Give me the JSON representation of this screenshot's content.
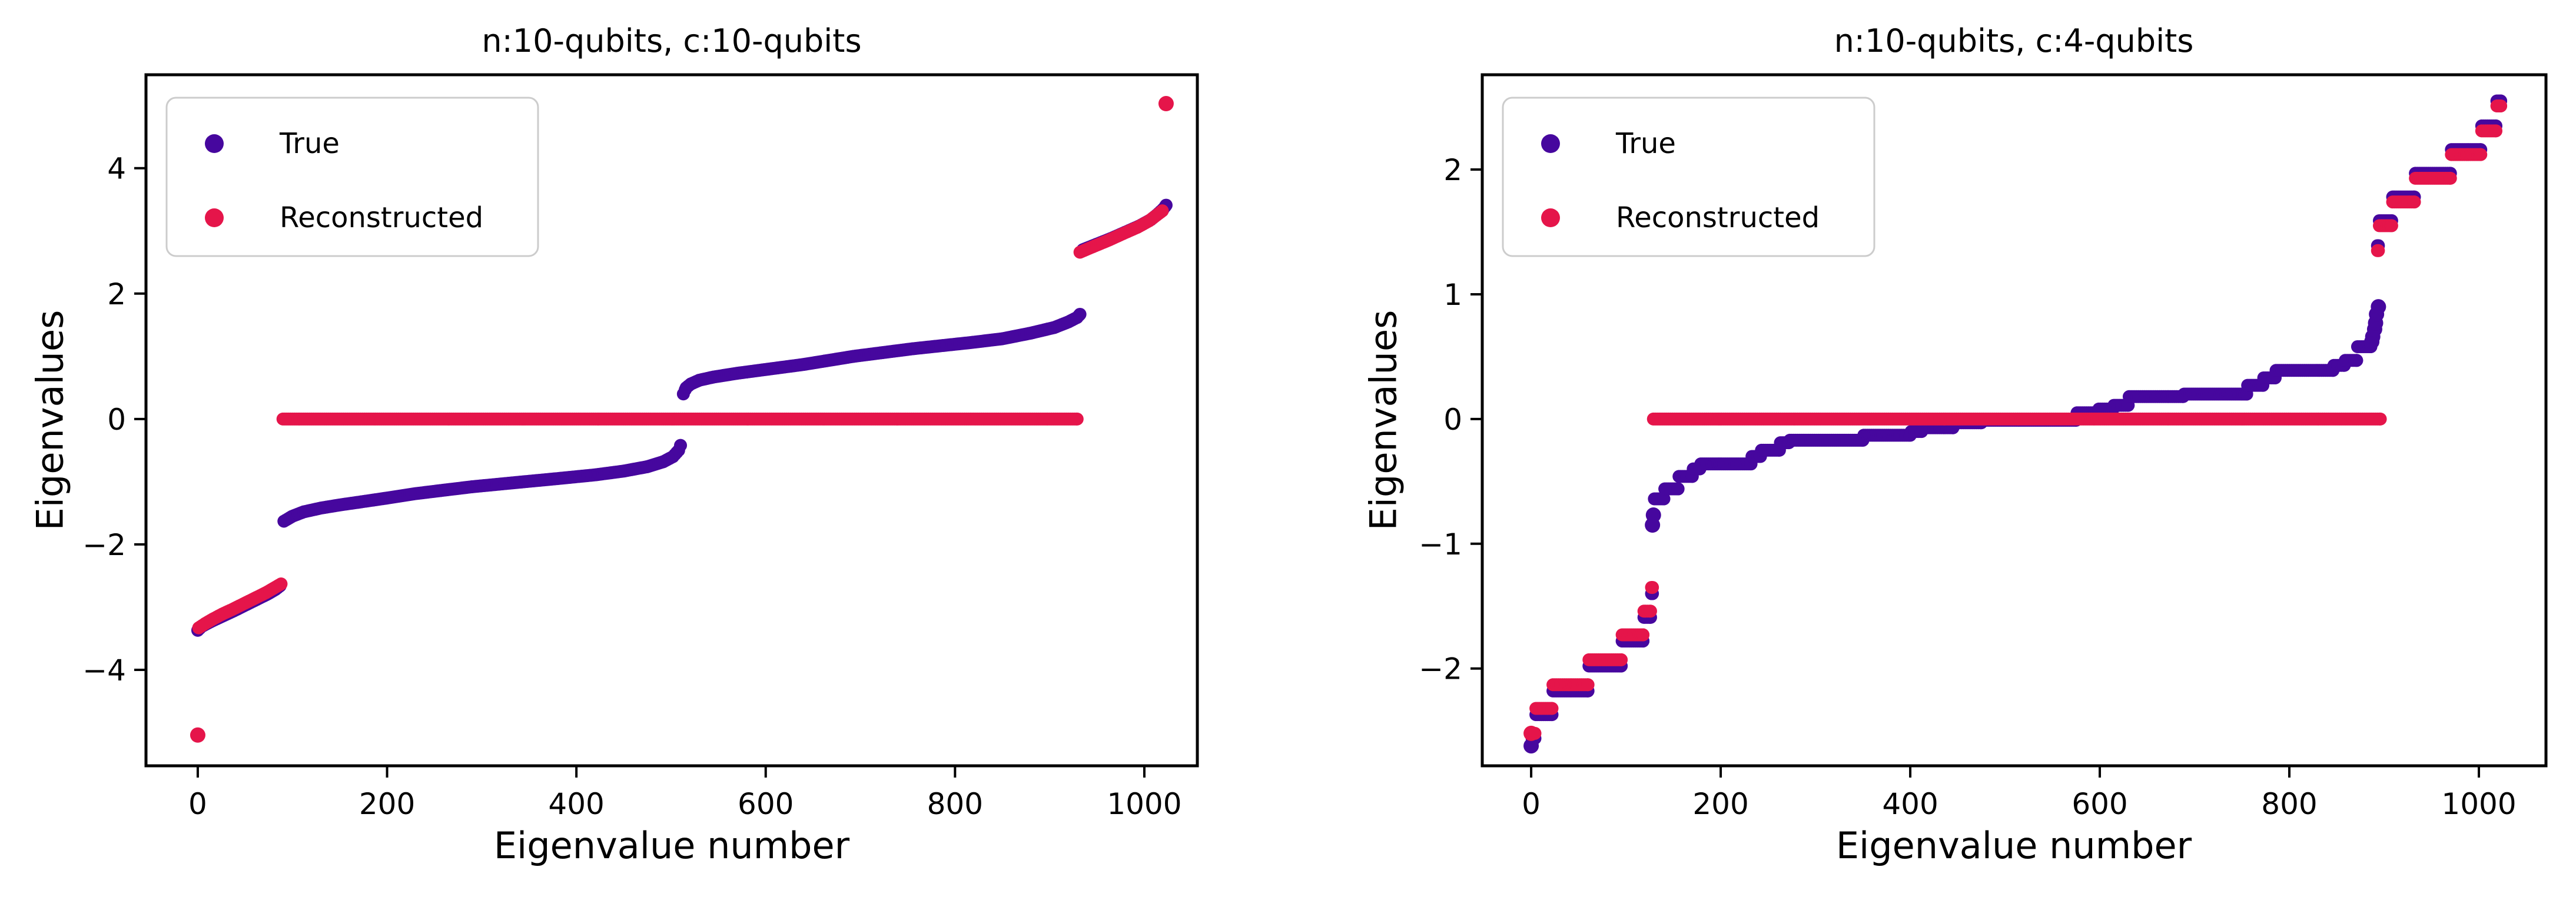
{
  "figure": {
    "background": "#ffffff",
    "spine_color": "#000000",
    "legend_border_color": "#cccccc"
  },
  "chart_data": [
    {
      "type": "scatter",
      "title": "n:10-qubits, c:10-qubits",
      "xlabel": "Eigenvalue number",
      "ylabel": "Eigenvalues",
      "xticks": [
        0,
        200,
        400,
        600,
        800,
        1000
      ],
      "yticks": [
        -4,
        -2,
        0,
        2,
        4
      ],
      "xlim": [
        -54.7,
        1056.0
      ],
      "ylim": [
        -5.53,
        5.49
      ],
      "grid": false,
      "legend_position": "upper left",
      "series": [
        {
          "name": "True",
          "color": "#46079e",
          "segments": [
            {
              "type": "curve",
              "points": [
                [
                  0,
                  -3.37
                ],
                [
                  4,
                  -3.31
                ],
                [
                  10,
                  -3.26
                ],
                [
                  18,
                  -3.2
                ],
                [
                  28,
                  -3.13
                ],
                [
                  38,
                  -3.06
                ],
                [
                  50,
                  -2.97
                ],
                [
                  62,
                  -2.88
                ],
                [
                  74,
                  -2.79
                ],
                [
                  82,
                  -2.72
                ],
                [
                  87,
                  -2.66
                ]
              ]
            },
            {
              "type": "curve",
              "points": [
                [
                  91,
                  -1.63
                ],
                [
                  100,
                  -1.55
                ],
                [
                  112,
                  -1.48
                ],
                [
                  130,
                  -1.42
                ],
                [
                  150,
                  -1.37
                ],
                [
                  173,
                  -1.32
                ],
                [
                  200,
                  -1.26
                ],
                [
                  230,
                  -1.19
                ],
                [
                  257,
                  -1.14
                ],
                [
                  290,
                  -1.08
                ],
                [
                  338,
                  -1.01
                ],
                [
                  380,
                  -0.95
                ],
                [
                  420,
                  -0.89
                ],
                [
                  450,
                  -0.83
                ],
                [
                  475,
                  -0.76
                ],
                [
                  492,
                  -0.68
                ],
                [
                  502,
                  -0.6
                ],
                [
                  508,
                  -0.5
                ],
                [
                  510,
                  -0.42
                ]
              ]
            },
            {
              "type": "curve",
              "points": [
                [
                  513,
                  0.4
                ],
                [
                  516,
                  0.5
                ],
                [
                  521,
                  0.56
                ],
                [
                  530,
                  0.62
                ],
                [
                  545,
                  0.67
                ],
                [
                  570,
                  0.73
                ],
                [
                  600,
                  0.79
                ],
                [
                  640,
                  0.87
                ],
                [
                  693,
                  1.0
                ],
                [
                  755,
                  1.12
                ],
                [
                  817,
                  1.22
                ],
                [
                  850,
                  1.28
                ],
                [
                  880,
                  1.37
                ],
                [
                  905,
                  1.46
                ],
                [
                  920,
                  1.55
                ],
                [
                  929,
                  1.62
                ],
                [
                  932,
                  1.67
                ]
              ]
            },
            {
              "type": "curve",
              "points": [
                [
                  935,
                  2.7
                ],
                [
                  950,
                  2.79
                ],
                [
                  965,
                  2.88
                ],
                [
                  980,
                  2.98
                ],
                [
                  995,
                  3.08
                ],
                [
                  1007,
                  3.18
                ],
                [
                  1015,
                  3.28
                ],
                [
                  1020,
                  3.35
                ],
                [
                  1023,
                  3.41
                ]
              ]
            }
          ]
        },
        {
          "name": "Reconstructed",
          "color": "#e5154a",
          "segments": [
            {
              "type": "dots",
              "points": [
                [
                  0,
                  -5.04
                ]
              ]
            },
            {
              "type": "curve",
              "points": [
                [
                  1,
                  -3.33
                ],
                [
                  8,
                  -3.26
                ],
                [
                  16,
                  -3.19
                ],
                [
                  26,
                  -3.11
                ],
                [
                  36,
                  -3.04
                ],
                [
                  48,
                  -2.95
                ],
                [
                  60,
                  -2.86
                ],
                [
                  72,
                  -2.77
                ],
                [
                  80,
                  -2.7
                ],
                [
                  88,
                  -2.63
                ]
              ]
            },
            {
              "type": "steps",
              "runs": [
                [
                  90,
                  929,
                  0.0
                ]
              ]
            },
            {
              "type": "curve",
              "points": [
                [
                  932,
                  2.66
                ],
                [
                  946,
                  2.75
                ],
                [
                  962,
                  2.85
                ],
                [
                  978,
                  2.96
                ],
                [
                  993,
                  3.06
                ],
                [
                  1005,
                  3.16
                ],
                [
                  1013,
                  3.25
                ],
                [
                  1019,
                  3.32
                ]
              ]
            },
            {
              "type": "dots",
              "points": [
                [
                  1023,
                  5.03
                ]
              ]
            }
          ]
        }
      ]
    },
    {
      "type": "scatter",
      "title": "n:10-qubits, c:4-qubits",
      "xlabel": "Eigenvalue number",
      "ylabel": "Eigenvalues",
      "xticks": [
        0,
        200,
        400,
        600,
        800,
        1000
      ],
      "yticks": [
        -2,
        -1,
        0,
        1,
        2
      ],
      "xlim": [
        -51.6,
        1070.8
      ],
      "ylim": [
        -2.78,
        2.76
      ],
      "grid": false,
      "legend_position": "upper left",
      "series": [
        {
          "name": "True",
          "color": "#46079e",
          "segments": [
            {
              "type": "dots",
              "points": [
                [
                  0,
                  -2.62
                ]
              ]
            },
            {
              "type": "steps",
              "runs": [
                [
                  1,
                  4,
                  -2.56
                ],
                [
                  5,
                  22,
                  -2.37
                ],
                [
                  23,
                  60,
                  -2.18
                ],
                [
                  61,
                  95,
                  -1.98
                ],
                [
                  96,
                  118,
                  -1.78
                ],
                [
                  119,
                  126,
                  -1.59
                ],
                [
                  127,
                  128,
                  -1.4
                ]
              ]
            },
            {
              "type": "dots",
              "points": [
                [
                  128,
                  -0.85
                ],
                [
                  129,
                  -0.77
                ]
              ]
            },
            {
              "type": "steps",
              "runs": [
                [
                  130,
                  140,
                  -0.64
                ],
                [
                  141,
                  155,
                  -0.56
                ],
                [
                  156,
                  170,
                  -0.46
                ],
                [
                  171,
                  178,
                  -0.4
                ],
                [
                  179,
                  232,
                  -0.36
                ],
                [
                  233,
                  242,
                  -0.3
                ],
                [
                  243,
                  262,
                  -0.25
                ],
                [
                  263,
                  272,
                  -0.19
                ],
                [
                  273,
                  350,
                  -0.17
                ],
                [
                  351,
                  400,
                  -0.13
                ],
                [
                  401,
                  412,
                  -0.1
                ],
                [
                  413,
                  445,
                  -0.07
                ],
                [
                  446,
                  475,
                  -0.03
                ],
                [
                  476,
                  575,
                  -0.01
                ],
                [
                  576,
                  598,
                  0.05
                ],
                [
                  599,
                  614,
                  0.08
                ],
                [
                  615,
                  630,
                  0.11
                ],
                [
                  631,
                  688,
                  0.18
                ],
                [
                  689,
                  755,
                  0.2
                ],
                [
                  756,
                  772,
                  0.27
                ],
                [
                  773,
                  785,
                  0.33
                ],
                [
                  786,
                  846,
                  0.39
                ],
                [
                  847,
                  858,
                  0.43
                ],
                [
                  859,
                  871,
                  0.47
                ],
                [
                  872,
                  886,
                  0.58
                ]
              ]
            },
            {
              "type": "dots",
              "points": [
                [
                  887,
                  0.62
                ],
                [
                  888,
                  0.66
                ],
                [
                  890,
                  0.72
                ],
                [
                  891,
                  0.77
                ],
                [
                  892,
                  0.84
                ],
                [
                  894,
                  0.9
                ]
              ]
            },
            {
              "type": "steps",
              "runs": [
                [
                  893,
                  894,
                  1.39
                ],
                [
                  895,
                  908,
                  1.59
                ],
                [
                  909,
                  932,
                  1.78
                ],
                [
                  933,
                  970,
                  1.97
                ],
                [
                  971,
                  1002,
                  2.16
                ],
                [
                  1003,
                  1018,
                  2.35
                ],
                [
                  1019,
                  1023,
                  2.55
                ]
              ]
            }
          ]
        },
        {
          "name": "Reconstructed",
          "color": "#e5154a",
          "segments": [
            {
              "type": "dots",
              "points": [
                [
                  0,
                  -2.52
                ]
              ]
            },
            {
              "type": "steps",
              "runs": [
                [
                  1,
                  4,
                  -2.52
                ],
                [
                  5,
                  22,
                  -2.32
                ],
                [
                  23,
                  60,
                  -2.13
                ],
                [
                  61,
                  95,
                  -1.93
                ],
                [
                  96,
                  118,
                  -1.73
                ],
                [
                  119,
                  126,
                  -1.54
                ],
                [
                  127,
                  128,
                  -1.35
                ]
              ]
            },
            {
              "type": "steps",
              "runs": [
                [
                  129,
                  896,
                  0.0
                ]
              ]
            },
            {
              "type": "steps",
              "runs": [
                [
                  893,
                  894,
                  1.35
                ],
                [
                  895,
                  908,
                  1.55
                ],
                [
                  909,
                  932,
                  1.74
                ],
                [
                  933,
                  970,
                  1.93
                ],
                [
                  971,
                  1002,
                  2.12
                ],
                [
                  1003,
                  1018,
                  2.31
                ],
                [
                  1019,
                  1023,
                  2.51
                ]
              ]
            }
          ]
        }
      ]
    }
  ]
}
